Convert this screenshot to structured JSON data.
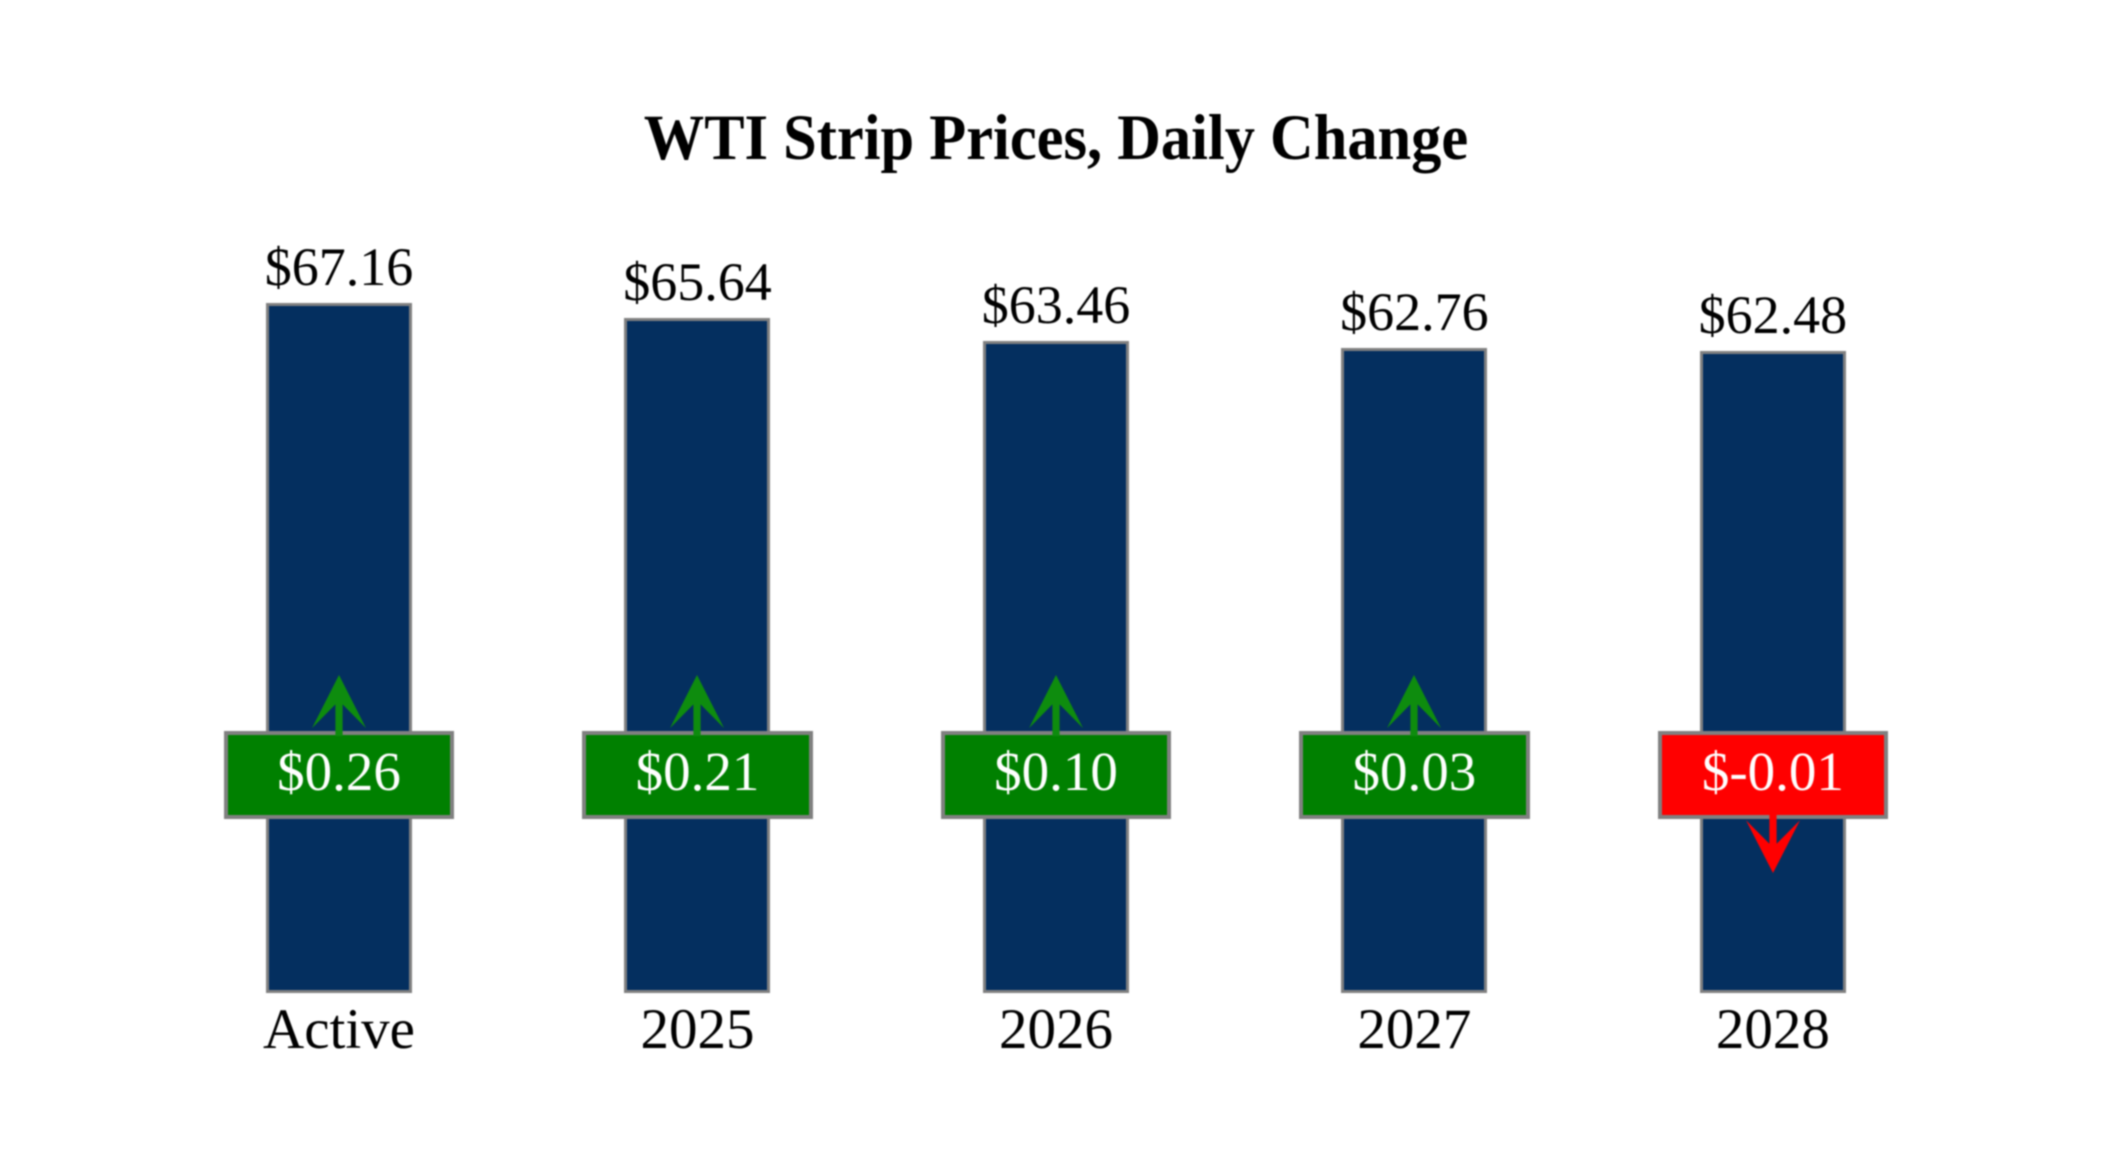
{
  "title": "WTI Strip Prices, Daily Change",
  "chart_data": {
    "type": "bar",
    "title": "WTI Strip Prices, Daily Change",
    "categories": [
      "Active",
      "2025",
      "2026",
      "2027",
      "2028"
    ],
    "series": [
      {
        "name": "Strip Price",
        "values": [
          67.16,
          65.64,
          63.46,
          62.76,
          62.48
        ]
      },
      {
        "name": "Daily Change",
        "values": [
          0.26,
          0.21,
          0.1,
          0.03,
          -0.01
        ]
      }
    ],
    "price_labels": [
      "$67.16",
      "$65.64",
      "$63.46",
      "$62.76",
      "$62.48"
    ],
    "change_labels": [
      "$0.26",
      "$0.21",
      "$0.10",
      "$0.03",
      "$-0.01"
    ],
    "change_directions": [
      "up",
      "up",
      "up",
      "up",
      "down"
    ],
    "xlabel": "",
    "ylabel": "",
    "ylim": [
      0,
      67.16
    ],
    "grid": false,
    "legend": "none",
    "colors": {
      "bar_fill": "#042f5f",
      "bar_border": "#808080",
      "positive_fill": "#008000",
      "negative_fill": "#ff0000",
      "positive_arrow": "#0e8c0e",
      "negative_arrow": "#ff0000",
      "box_border": "#808080",
      "box_text": "#ffffff",
      "label_text": "#000000",
      "background": "#ffffff"
    }
  }
}
